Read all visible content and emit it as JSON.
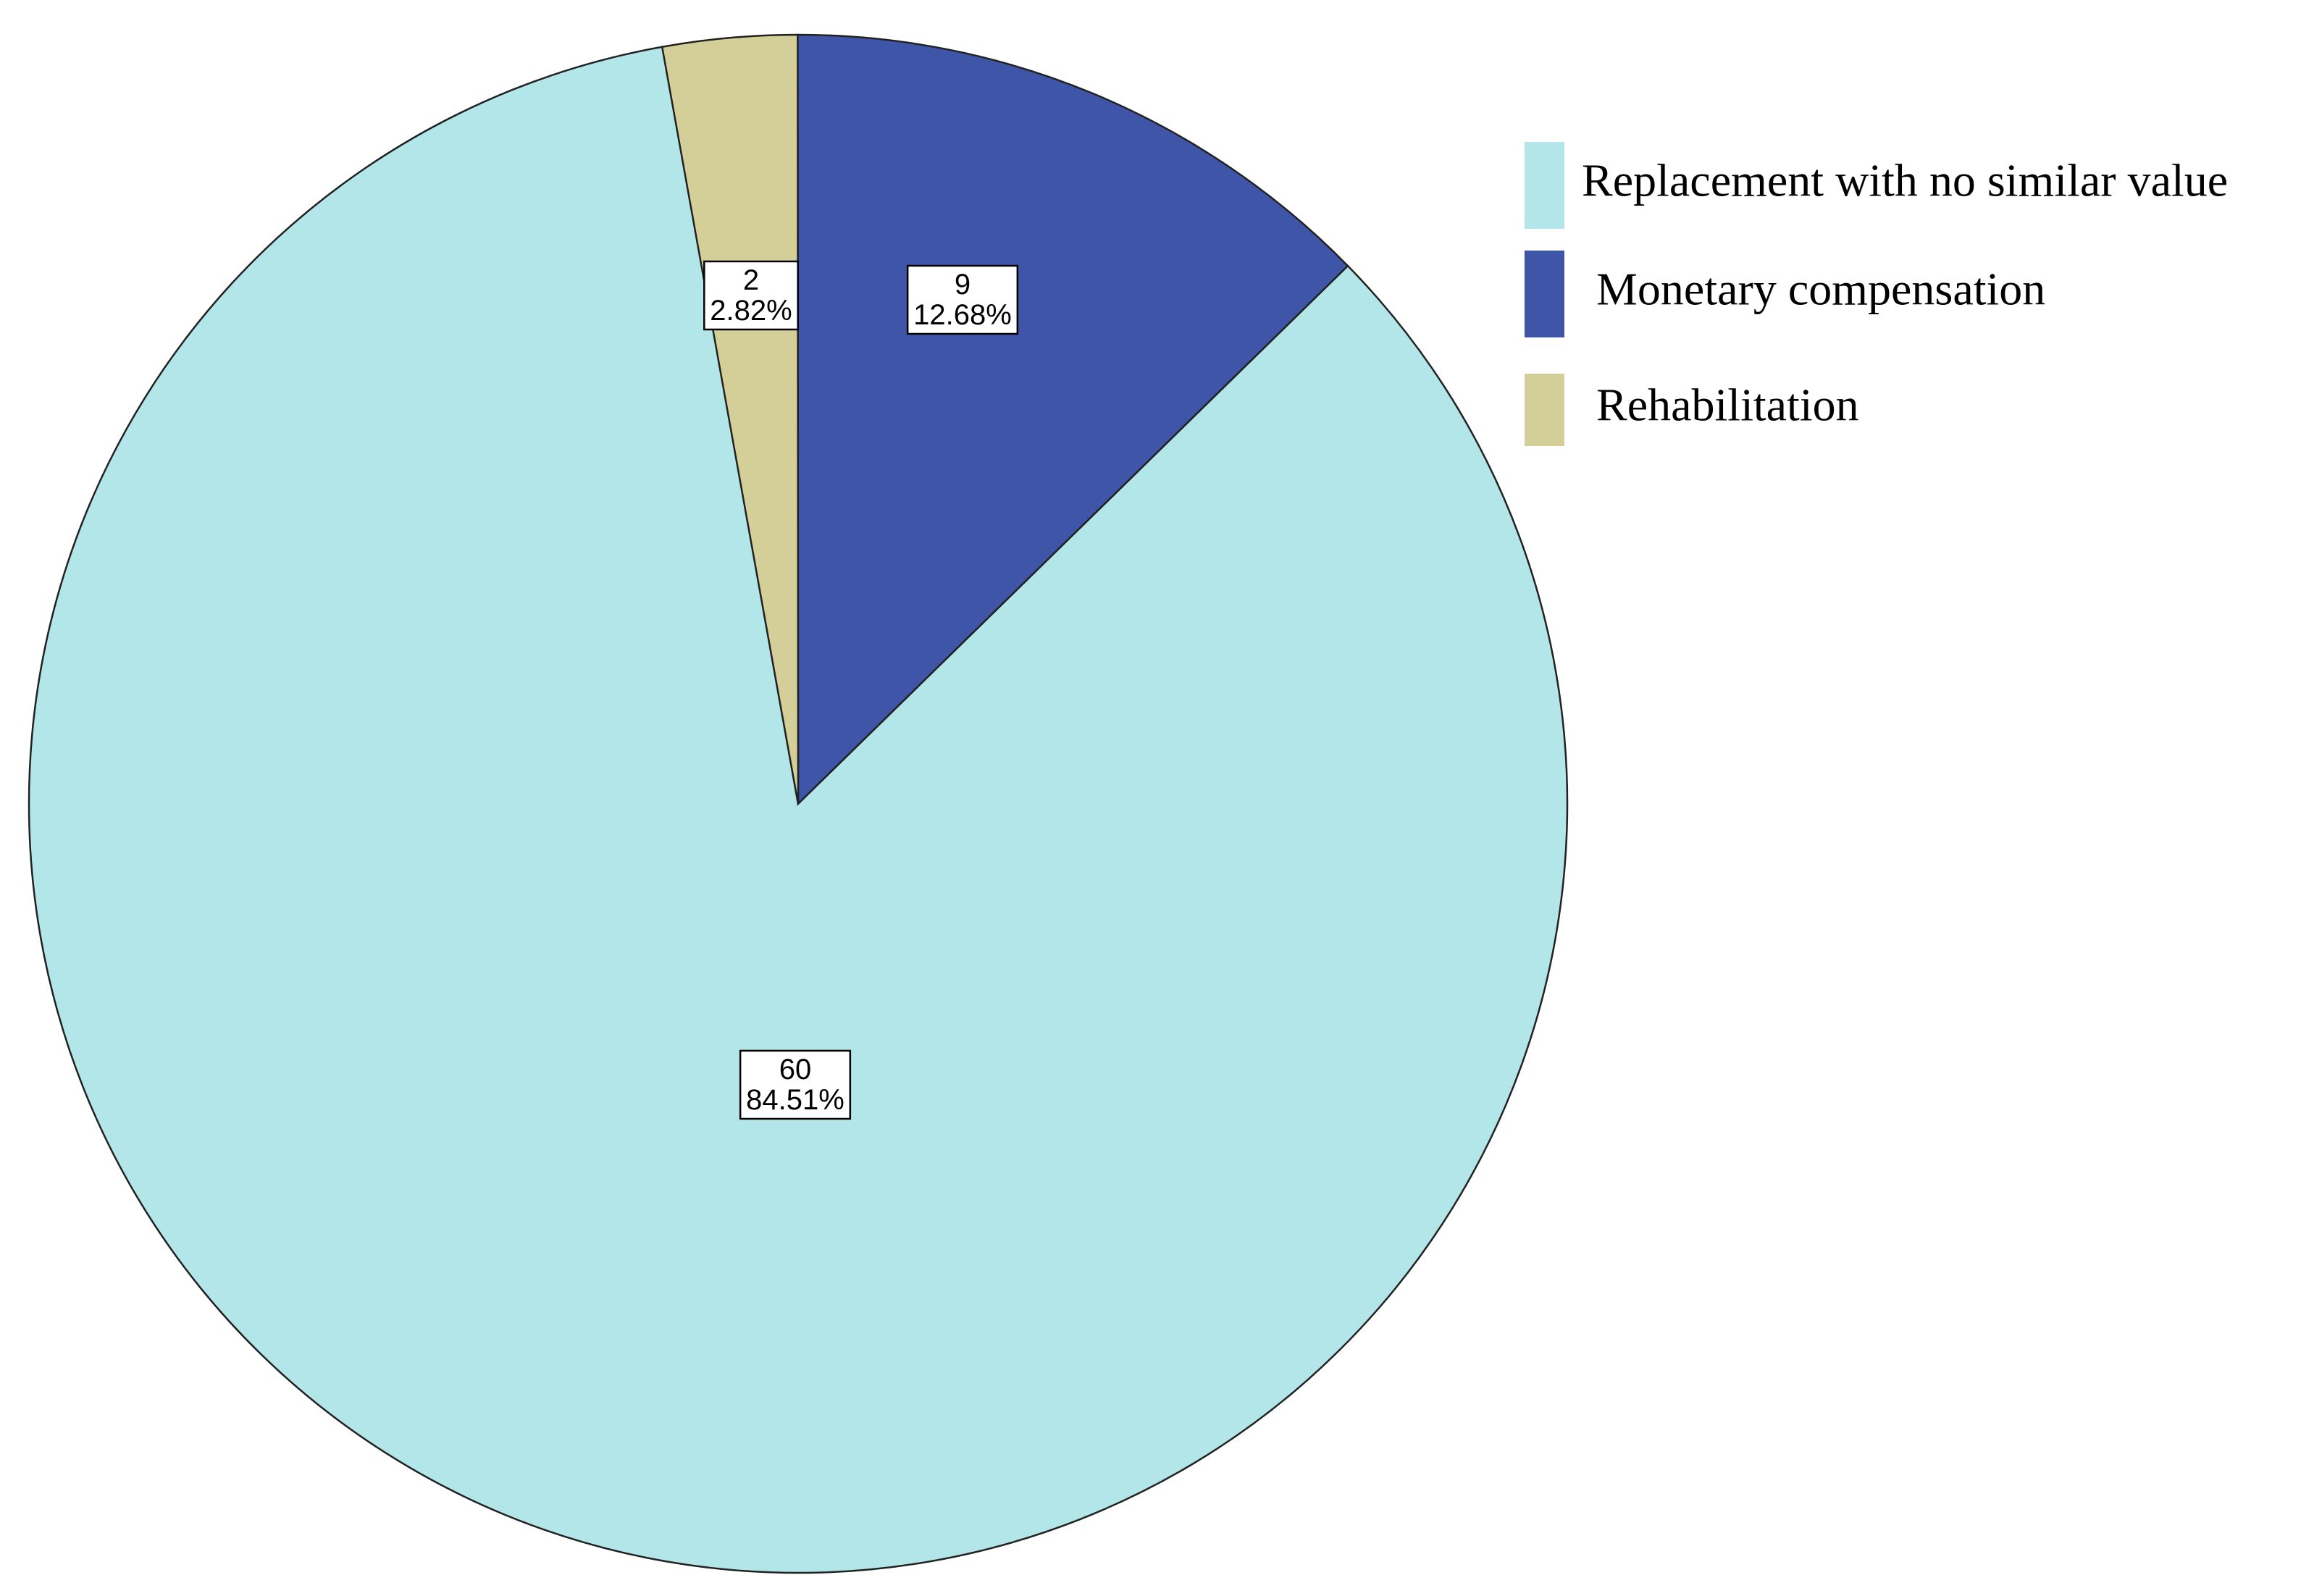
{
  "chart_data": {
    "type": "pie",
    "categories": [
      "Replacement with no similar value",
      "Monetary compensation",
      "Rehabilitation"
    ],
    "values": [
      60,
      9,
      2
    ],
    "percents": [
      {
        "value": 84.51,
        "label": "84.51%"
      },
      {
        "value": 12.68,
        "label": "12.68%"
      },
      {
        "value": 2.82,
        "label": "2.82%"
      }
    ],
    "colors": [
      "#b3e6e8",
      "#3f55a8",
      "#d4cf99"
    ],
    "legend": "top-right"
  }
}
